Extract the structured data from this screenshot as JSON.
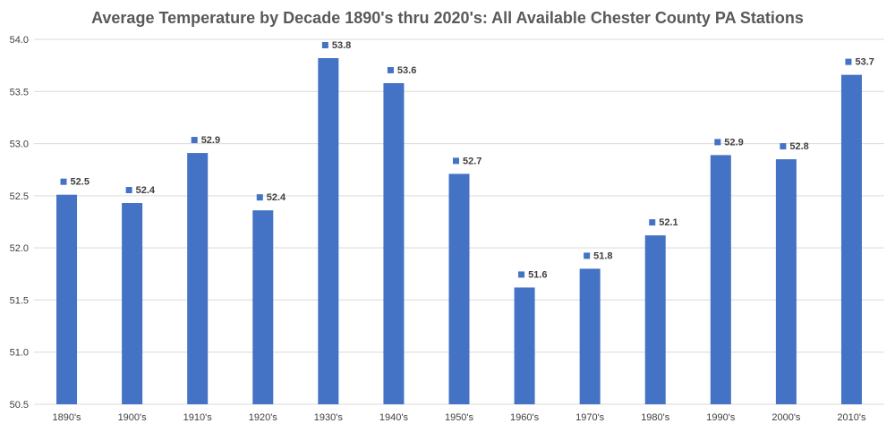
{
  "chart_data": {
    "type": "bar",
    "title": "Average Temperature by Decade 1890's thru 2020's: All Available Chester County PA Stations",
    "xlabel": "",
    "ylabel": "",
    "categories": [
      "1890's",
      "1900's",
      "1910's",
      "1920's",
      "1930's",
      "1940's",
      "1950's",
      "1960's",
      "1970's",
      "1980's",
      "1990's",
      "2000's",
      "2010's"
    ],
    "values": [
      52.51,
      52.43,
      52.91,
      52.36,
      53.82,
      53.58,
      52.71,
      51.62,
      51.8,
      52.12,
      52.89,
      52.85,
      53.66
    ],
    "data_labels": [
      "52.5",
      "52.4",
      "52.9",
      "52.4",
      "53.8",
      "53.6",
      "52.7",
      "51.6",
      "51.8",
      "52.1",
      "52.9",
      "52.8",
      "53.7"
    ],
    "ylim": [
      50.5,
      54.0
    ],
    "yticks": [
      "50.5",
      "51.0",
      "51.5",
      "52.0",
      "52.5",
      "53.0",
      "53.5",
      "54.0"
    ],
    "grid": true,
    "legend": "none",
    "bar_color": "#4472C4"
  }
}
